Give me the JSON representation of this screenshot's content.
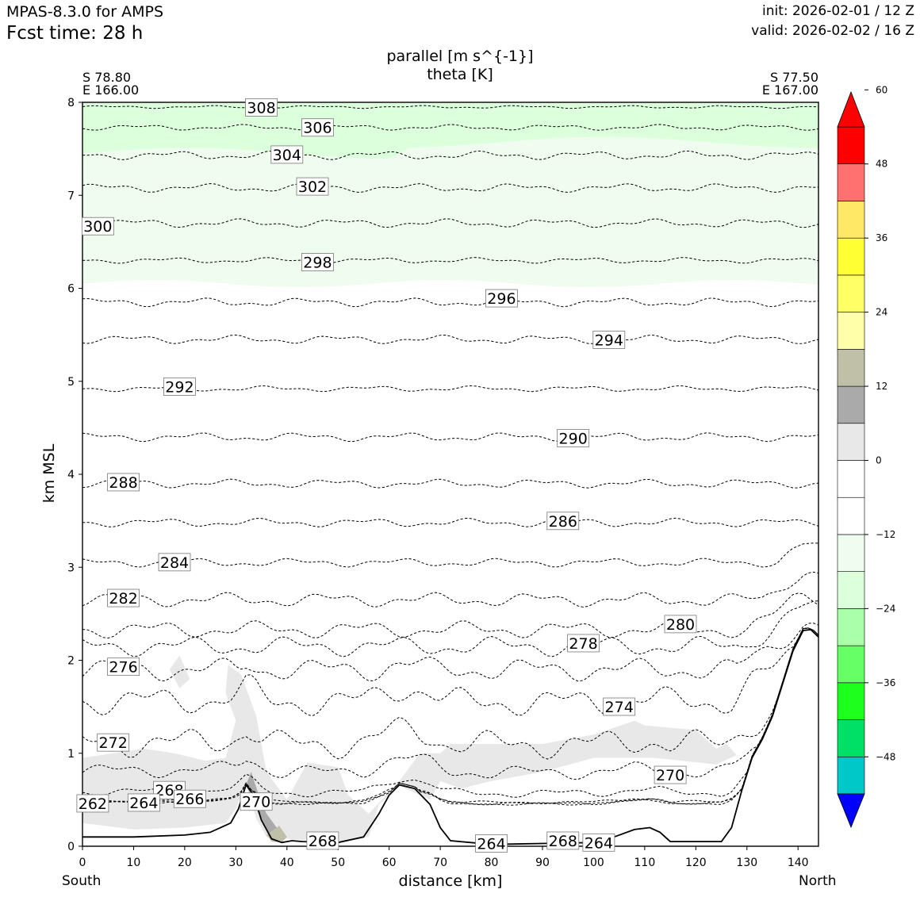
{
  "header": {
    "model": "MPAS-8.3.0 for AMPS",
    "forecast_time": "Fcst time:   28 h",
    "init": "init: 2026-02-01 / 12 Z",
    "valid": "valid: 2026-02-02 / 16 Z"
  },
  "chart_data": {
    "type": "contour-cross-section",
    "title": "parallel [m s^{-1}]",
    "subtitle": "theta [K]",
    "xlabel": "distance [km]",
    "ylabel": "km MSL",
    "xlim": [
      0,
      144
    ],
    "ylim": [
      0,
      8
    ],
    "x_ticks": [
      0,
      10,
      20,
      30,
      40,
      50,
      60,
      70,
      80,
      90,
      100,
      110,
      120,
      130,
      140
    ],
    "y_ticks": [
      0,
      1,
      2,
      3,
      4,
      5,
      6,
      7,
      8
    ],
    "start_point": {
      "lat": "S 78.80",
      "lon": "E 166.00"
    },
    "end_point": {
      "lat": "S 77.50",
      "lon": "E 167.00"
    },
    "x_left_label": "South",
    "x_right_label": "North",
    "colorbar": {
      "min": -60,
      "max": 60,
      "step": 6,
      "tick_labels": [
        "60",
        "48",
        "36",
        "24",
        "12",
        "0",
        "−12",
        "−24",
        "−36",
        "−48"
      ],
      "tick_values": [
        60,
        48,
        36,
        24,
        12,
        0,
        -12,
        -24,
        -36,
        -48
      ],
      "colors_bottom_to_top": [
        "#0000ff",
        "#00c8c8",
        "#00e066",
        "#1eff1e",
        "#66ff66",
        "#aaffaa",
        "#dcffdc",
        "#f0fcf0",
        "#ffffff",
        "#ffffff",
        "#e8e8e8",
        "#aaaaaa",
        "#c0c0a8",
        "#ffffaa",
        "#ffff66",
        "#ffff33",
        "#ffe866",
        "#ff7070",
        "#ff0000",
        "#ff0000"
      ]
    },
    "terrain": [
      [
        0,
        0.1
      ],
      [
        10,
        0.1
      ],
      [
        20,
        0.12
      ],
      [
        25,
        0.15
      ],
      [
        29,
        0.25
      ],
      [
        30.5,
        0.4
      ],
      [
        32,
        0.66
      ],
      [
        33.5,
        0.55
      ],
      [
        35,
        0.28
      ],
      [
        37,
        0.08
      ],
      [
        39,
        0.04
      ],
      [
        41,
        0.06
      ],
      [
        43,
        0.05
      ],
      [
        50,
        0.04
      ],
      [
        55,
        0.1
      ],
      [
        58,
        0.35
      ],
      [
        60,
        0.55
      ],
      [
        62,
        0.66
      ],
      [
        65,
        0.62
      ],
      [
        68,
        0.45
      ],
      [
        70,
        0.2
      ],
      [
        72,
        0.06
      ],
      [
        80,
        0.02
      ],
      [
        90,
        0.03
      ],
      [
        100,
        0.04
      ],
      [
        104,
        0.1
      ],
      [
        108,
        0.18
      ],
      [
        111,
        0.2
      ],
      [
        113,
        0.15
      ],
      [
        115,
        0.05
      ],
      [
        125,
        0.05
      ],
      [
        127,
        0.2
      ],
      [
        129,
        0.6
      ],
      [
        131,
        0.95
      ],
      [
        133,
        1.15
      ],
      [
        135,
        1.4
      ],
      [
        137,
        1.75
      ],
      [
        139,
        2.1
      ],
      [
        141,
        2.32
      ],
      [
        142.5,
        2.33
      ],
      [
        144,
        2.25
      ]
    ],
    "theta_contours": [
      {
        "level": 308,
        "base": 7.95,
        "label_x": 35,
        "amp": 0.01
      },
      {
        "level": 306,
        "base": 7.73,
        "label_x": 46,
        "amp": 0.02
      },
      {
        "level": 304,
        "base": 7.43,
        "label_x": 40,
        "amp": 0.03
      },
      {
        "level": 302,
        "base": 7.08,
        "label_x": 45,
        "amp": 0.03
      },
      {
        "level": 300,
        "base": 6.7,
        "label_x": 3,
        "amp": 0.03
      },
      {
        "level": 298,
        "base": 6.3,
        "label_x": 46,
        "amp": 0.02
      },
      {
        "level": 296,
        "base": 5.85,
        "label_x": 82,
        "amp": 0.03
      },
      {
        "level": 294,
        "base": 5.45,
        "label_x": 103,
        "amp": 0.03
      },
      {
        "level": 292,
        "base": 4.92,
        "label_x": 19,
        "amp": 0.02
      },
      {
        "level": 290,
        "base": 4.4,
        "label_x": 96,
        "amp": 0.03
      },
      {
        "level": 288,
        "base": 3.9,
        "label_x": 8,
        "amp": 0.03
      },
      {
        "level": 286,
        "base": 3.48,
        "label_x": 94,
        "amp": 0.03
      },
      {
        "level": 284,
        "base": 3.05,
        "label_x": 18,
        "amp": 0.03
      },
      {
        "level": 282,
        "base": 2.65,
        "label_x": 8,
        "amp": 0.05
      },
      {
        "level": 280,
        "base": 2.33,
        "label_x": 117,
        "amp": 0.06
      },
      {
        "level": 278,
        "base": 2.15,
        "label_x": 98,
        "amp": 0.07
      },
      {
        "level": 276,
        "base": 1.9,
        "label_x": 8,
        "amp": 0.08
      },
      {
        "level": 274,
        "base": 1.55,
        "label_x": 105,
        "amp": 0.1
      },
      {
        "level": 272,
        "base": 0.95,
        "label_x": 6,
        "amp": 0.1
      },
      {
        "level": 270,
        "base": 0.55,
        "label_x": 115,
        "amp": 0.05
      },
      {
        "level": 268,
        "base": 0.25,
        "label_x": 17,
        "amp": 0.03
      },
      {
        "level": 266,
        "base": 0.12,
        "label_x": 21,
        "amp": 0.01
      },
      {
        "level": 264,
        "base": 0.1,
        "label_x": 12,
        "amp": 0.01
      },
      {
        "level": 262,
        "base": 0.1,
        "label_x": 2,
        "amp": 0.01
      }
    ],
    "extra_contour_labels": [
      {
        "level": 270,
        "x": 34,
        "y": 0.48
      },
      {
        "level": 268,
        "x": 47,
        "y": 0.06
      },
      {
        "level": 264,
        "x": 80,
        "y": 0.03
      },
      {
        "level": 268,
        "x": 94,
        "y": 0.06
      },
      {
        "level": 264,
        "x": 101,
        "y": 0.04
      }
    ]
  }
}
